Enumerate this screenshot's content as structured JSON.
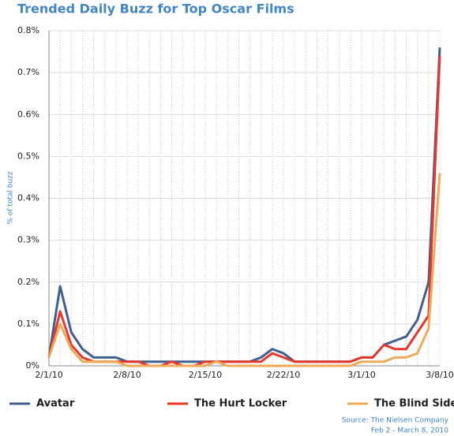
{
  "chart_data": {
    "type": "line",
    "title": "Trended Daily Buzz for Top Oscar Films",
    "y_label": "% of total buzz",
    "categories": [
      "2/1/10",
      null,
      null,
      null,
      null,
      null,
      null,
      "2/8/10",
      null,
      null,
      null,
      null,
      null,
      null,
      "2/15/10",
      null,
      null,
      null,
      null,
      null,
      null,
      "2/22/10",
      null,
      null,
      null,
      null,
      null,
      null,
      "3/1/10",
      null,
      null,
      null,
      null,
      null,
      null,
      "3/8/10"
    ],
    "series": [
      {
        "name": "Avatar",
        "color": "#3f5f91",
        "values": [
          0.02,
          0.19,
          0.08,
          0.04,
          0.02,
          0.02,
          0.02,
          0.01,
          0.01,
          0.01,
          0.01,
          0.01,
          0.01,
          0.01,
          0.01,
          0.01,
          0.01,
          0.01,
          0.01,
          0.02,
          0.04,
          0.03,
          0.01,
          0.01,
          0.01,
          0.01,
          0.01,
          0.01,
          0.02,
          0.02,
          0.05,
          0.06,
          0.07,
          0.11,
          0.2,
          0.76
        ]
      },
      {
        "name": "The Hurt Locker",
        "color": "#e8372c",
        "values": [
          0.02,
          0.13,
          0.05,
          0.02,
          0.01,
          0.01,
          0.01,
          0.01,
          0.01,
          0,
          0,
          0.01,
          0,
          0,
          0.01,
          0.01,
          0.01,
          0.01,
          0.01,
          0.01,
          0.03,
          0.02,
          0.01,
          0.01,
          0.01,
          0.01,
          0.01,
          0.01,
          0.02,
          0.02,
          0.05,
          0.04,
          0.04,
          0.08,
          0.12,
          0.74
        ]
      },
      {
        "name": "The Blind Side",
        "color": "#eeab57",
        "values": [
          0.02,
          0.1,
          0.04,
          0.01,
          0.01,
          0.01,
          0.01,
          0,
          0,
          0,
          0,
          0,
          0,
          0,
          0,
          0.01,
          0,
          0,
          0,
          0,
          0,
          0,
          0,
          0,
          0,
          0,
          0,
          0,
          0.01,
          0.01,
          0.01,
          0.02,
          0.02,
          0.03,
          0.09,
          0.46
        ]
      }
    ],
    "ylim": [
      0,
      0.8
    ],
    "yticks": [
      {
        "value": 0,
        "label": "0%"
      },
      {
        "value": 0.1,
        "label": "0.1%"
      },
      {
        "value": 0.2,
        "label": "0.2%"
      },
      {
        "value": 0.3,
        "label": "0.3%"
      },
      {
        "value": 0.4,
        "label": "0.4%"
      },
      {
        "value": 0.5,
        "label": "0.5%"
      },
      {
        "value": 0.6,
        "label": "0.6%"
      },
      {
        "value": 0.7,
        "label": "0.7%"
      },
      {
        "value": 0.8,
        "label": "0.8%"
      }
    ],
    "grid": true,
    "legend": "bottom",
    "note": [
      "Source: The Nielsen Company",
      "Feb 2 - March 8, 2010"
    ]
  }
}
